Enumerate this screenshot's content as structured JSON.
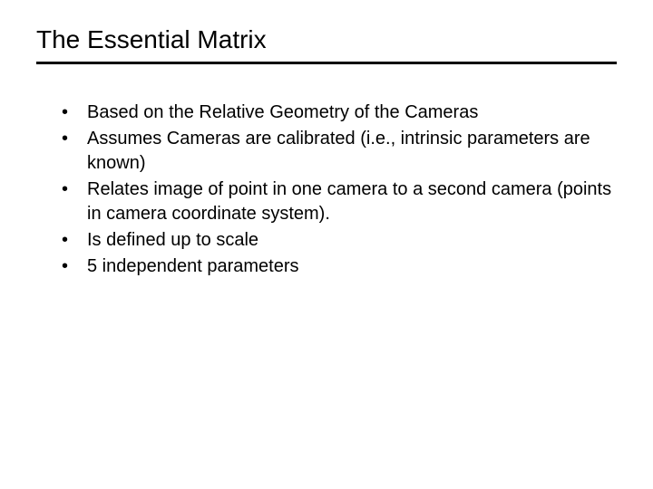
{
  "slide": {
    "title": "The Essential Matrix",
    "bullets": [
      "Based on the Relative Geometry of the Cameras",
      "Assumes Cameras are calibrated (i.e., intrinsic parameters are known)",
      "Relates image of point in one camera to a second camera (points in camera coordinate system).",
      "Is defined up to scale",
      "5 independent parameters"
    ]
  },
  "styling": {
    "background_color": "#ffffff",
    "text_color": "#000000",
    "title_fontsize": 28,
    "body_fontsize": 20,
    "divider_color": "#000000",
    "divider_width": 3,
    "font_family": "Arial"
  }
}
